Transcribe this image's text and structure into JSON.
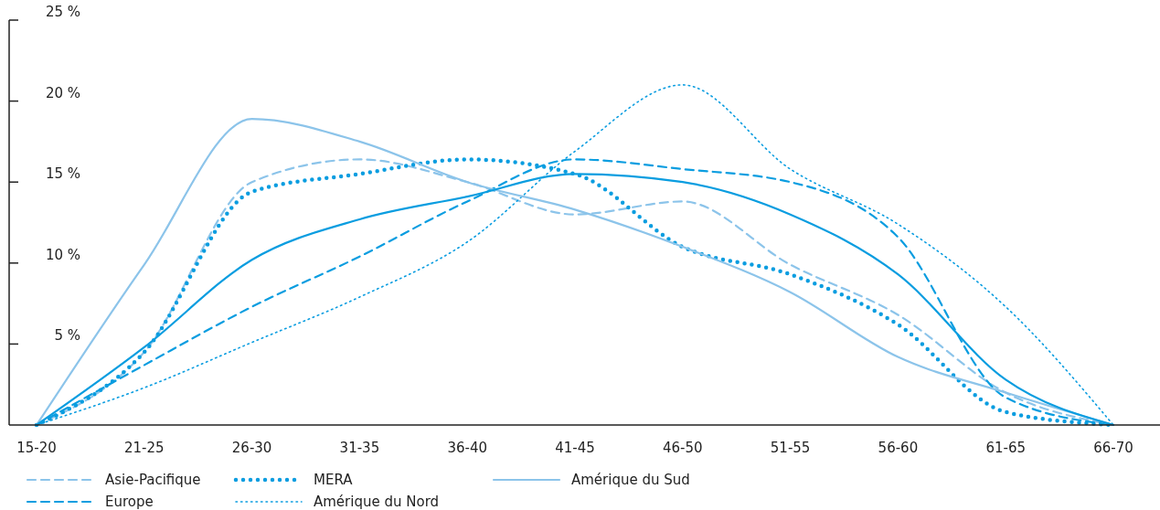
{
  "chart_data": {
    "type": "line",
    "categories": [
      "15-20",
      "21-25",
      "26-30",
      "31-35",
      "36-40",
      "41-45",
      "46-50",
      "51-55",
      "56-60",
      "61-65",
      "66-70"
    ],
    "ylim": [
      0,
      25
    ],
    "yticks": [
      {
        "value": 5,
        "label": "5 %"
      },
      {
        "value": 10,
        "label": "10 %"
      },
      {
        "value": 15,
        "label": "15 %"
      },
      {
        "value": 20,
        "label": "20 %"
      },
      {
        "value": 25,
        "label": "25 %"
      }
    ],
    "grid": false,
    "legend": "bottom",
    "marker": "none",
    "series": [
      {
        "name": "Asie-Pacifique",
        "color": "#8cc4ea",
        "line_style": "dashed",
        "values": [
          0,
          4.5,
          15,
          16.4,
          15,
          13,
          13.8,
          9.9,
          6.8,
          2,
          0
        ]
      },
      {
        "name": "Europe",
        "color": "#0a9de0",
        "line_style": "dashed",
        "values": [
          0,
          3.7,
          7.3,
          10.4,
          13.8,
          16.4,
          15.8,
          15,
          11.6,
          1.7,
          0
        ]
      },
      {
        "name": "MERA",
        "color": "#0a9de0",
        "line_style": "dotted",
        "values": [
          0,
          4.5,
          14.4,
          15.5,
          16.4,
          15.5,
          11,
          9.3,
          6.2,
          0.8,
          0
        ]
      },
      {
        "name": "Amérique du Nord",
        "color": "#0a9de0",
        "line_style": "dotted",
        "values": [
          0,
          2.3,
          5.1,
          7.9,
          11.3,
          16.9,
          21,
          15.8,
          12.4,
          7.3,
          0
        ]
      },
      {
        "name": "Amérique du Sud",
        "color": "#8cc4ea",
        "line_style": "solid",
        "values": [
          0,
          9.9,
          18.9,
          17.5,
          15,
          13.3,
          11,
          8.2,
          4.2,
          2,
          0
        ]
      },
      {
        "color": "#0a9de0",
        "line_style": "solid",
        "values": [
          0,
          4.8,
          10.2,
          12.7,
          14.1,
          15.5,
          15,
          13,
          9.3,
          2.8,
          0
        ]
      }
    ]
  }
}
